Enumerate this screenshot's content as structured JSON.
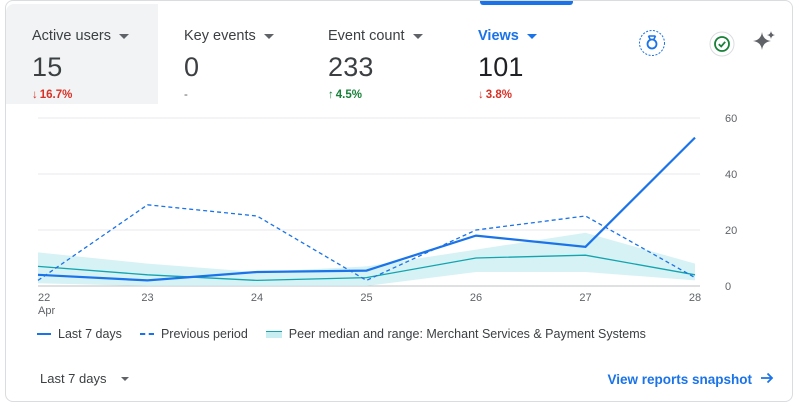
{
  "metrics": [
    {
      "label": "Active users",
      "value": "15",
      "change": "16.7%",
      "direction": "down"
    },
    {
      "label": "Key events",
      "value": "0",
      "change": "-",
      "direction": "neutral"
    },
    {
      "label": "Event count",
      "value": "233",
      "change": "4.5%",
      "direction": "up"
    },
    {
      "label": "Views",
      "value": "101",
      "change": "3.8%",
      "direction": "down"
    }
  ],
  "icons": {
    "badge": "award-badge-icon",
    "check": "check-circle-icon",
    "sparkle": "sparkle-icon"
  },
  "chart_data": {
    "type": "line",
    "x": [
      "22",
      "23",
      "24",
      "25",
      "26",
      "27",
      "28"
    ],
    "x_sublabel": "Apr",
    "ylim": [
      0,
      60
    ],
    "yticks": [
      "60",
      "40",
      "20",
      "0"
    ],
    "grid": true,
    "series": [
      {
        "name": "Last 7 days",
        "style": "solid",
        "values": [
          4,
          2,
          5,
          5.5,
          18,
          14,
          53
        ]
      },
      {
        "name": "Previous period",
        "style": "dashed",
        "values": [
          2,
          29,
          25,
          2,
          20,
          25,
          3
        ]
      },
      {
        "name": "Peer median and range: Merchant Services & Payment Systems",
        "style": "band",
        "median": [
          7,
          4,
          2,
          3,
          10,
          11,
          4
        ],
        "low": [
          1,
          0,
          0,
          0,
          5,
          5,
          2
        ],
        "high": [
          12,
          8,
          5,
          7,
          13,
          19,
          8
        ]
      }
    ]
  },
  "colors": {
    "accent": "#1a73e8",
    "peer": "#12a4af",
    "peer_band": "#c8eef2",
    "down": "#d93025",
    "up": "#188038"
  },
  "footer": {
    "range_label": "Last 7 days",
    "link_label": "View reports snapshot"
  }
}
